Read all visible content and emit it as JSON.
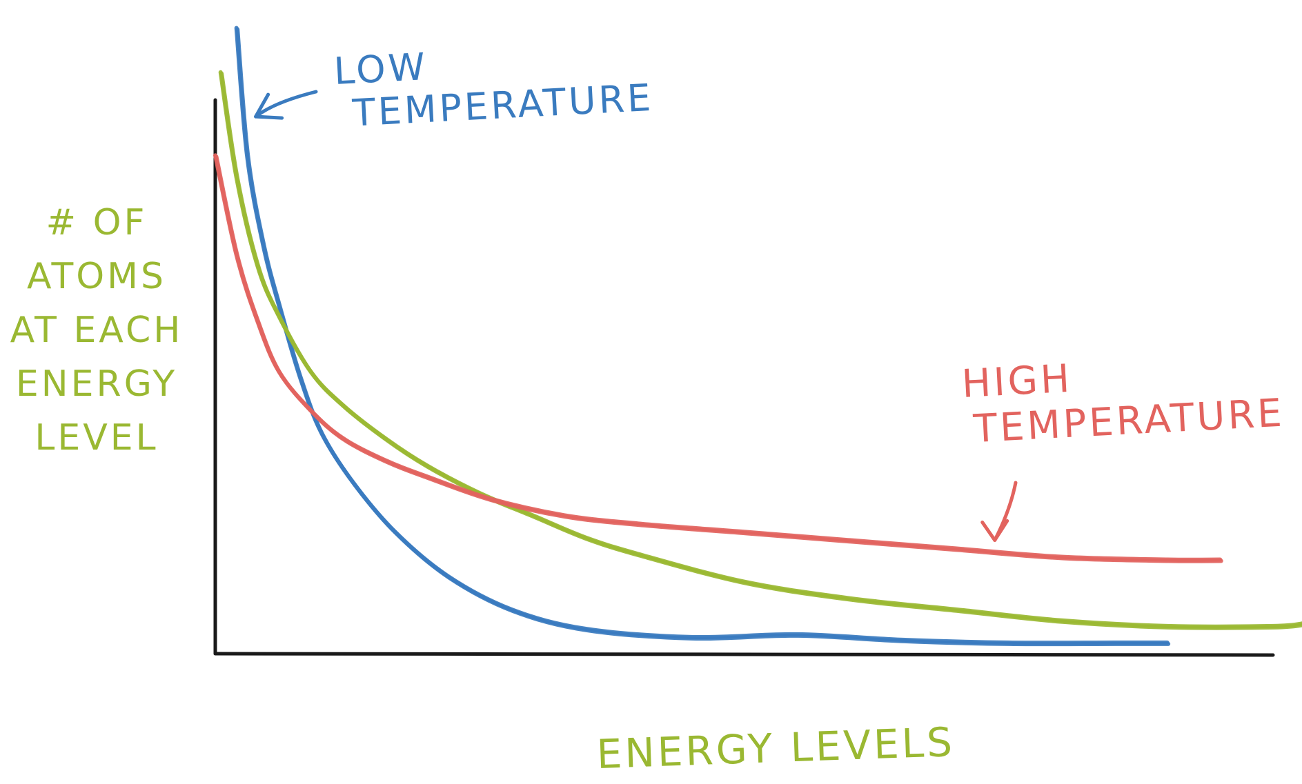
{
  "chart_data": {
    "type": "line",
    "title": "",
    "xlabel": "ENERGY LEVELS",
    "ylabel_lines": [
      "# OF",
      "ATOMS",
      "AT EACH",
      "ENERGY",
      "LEVEL"
    ],
    "xlim": [
      0,
      10
    ],
    "ylim": [
      0,
      10
    ],
    "grid": false,
    "legend": "none",
    "series": [
      {
        "name": "LOW TEMPERATURE",
        "color": "#3a7bbf",
        "x": [
          0.2,
          0.3,
          0.45,
          0.6,
          0.8,
          1.0,
          1.3,
          1.7,
          2.2,
          2.8,
          3.5,
          4.5,
          5.5,
          6.5,
          7.5,
          8.5,
          9.0
        ],
        "y": [
          11.3,
          9.0,
          7.4,
          6.3,
          5.0,
          4.0,
          3.1,
          2.2,
          1.4,
          0.8,
          0.45,
          0.3,
          0.35,
          0.25,
          0.2,
          0.2,
          0.2
        ]
      },
      {
        "name": "",
        "color": "#9ab832",
        "x": [
          0.05,
          0.2,
          0.4,
          0.6,
          0.9,
          1.2,
          1.6,
          2.0,
          2.5,
          3.0,
          3.5,
          4.0,
          5.0,
          6.0,
          7.0,
          8.0,
          9.0,
          10.0,
          10.3
        ],
        "y": [
          10.5,
          8.6,
          7.0,
          6.1,
          5.1,
          4.5,
          3.9,
          3.4,
          2.9,
          2.5,
          2.1,
          1.8,
          1.3,
          1.0,
          0.8,
          0.6,
          0.5,
          0.5,
          0.55
        ]
      },
      {
        "name": "HIGH TEMPERATURE",
        "color": "#e2635e",
        "x": [
          0.0,
          0.2,
          0.4,
          0.6,
          0.9,
          1.2,
          1.6,
          2.0,
          2.6,
          3.3,
          4.0,
          5.0,
          6.0,
          7.0,
          8.0,
          9.0,
          9.5
        ],
        "y": [
          9.0,
          7.2,
          6.0,
          5.1,
          4.4,
          3.9,
          3.5,
          3.2,
          2.8,
          2.5,
          2.35,
          2.2,
          2.05,
          1.9,
          1.75,
          1.7,
          1.7
        ]
      }
    ],
    "annotations": [
      {
        "lines": [
          "LOW",
          "TEMPERATURE"
        ],
        "color": "#3a7bbf",
        "arrow_to": [
          0.33,
          9.7
        ]
      },
      {
        "lines": [
          "HIGH",
          "TEMPERATURE"
        ],
        "color": "#e2635e",
        "arrow_to": [
          7.5,
          1.9
        ]
      }
    ],
    "label_color": "#9ab832"
  }
}
